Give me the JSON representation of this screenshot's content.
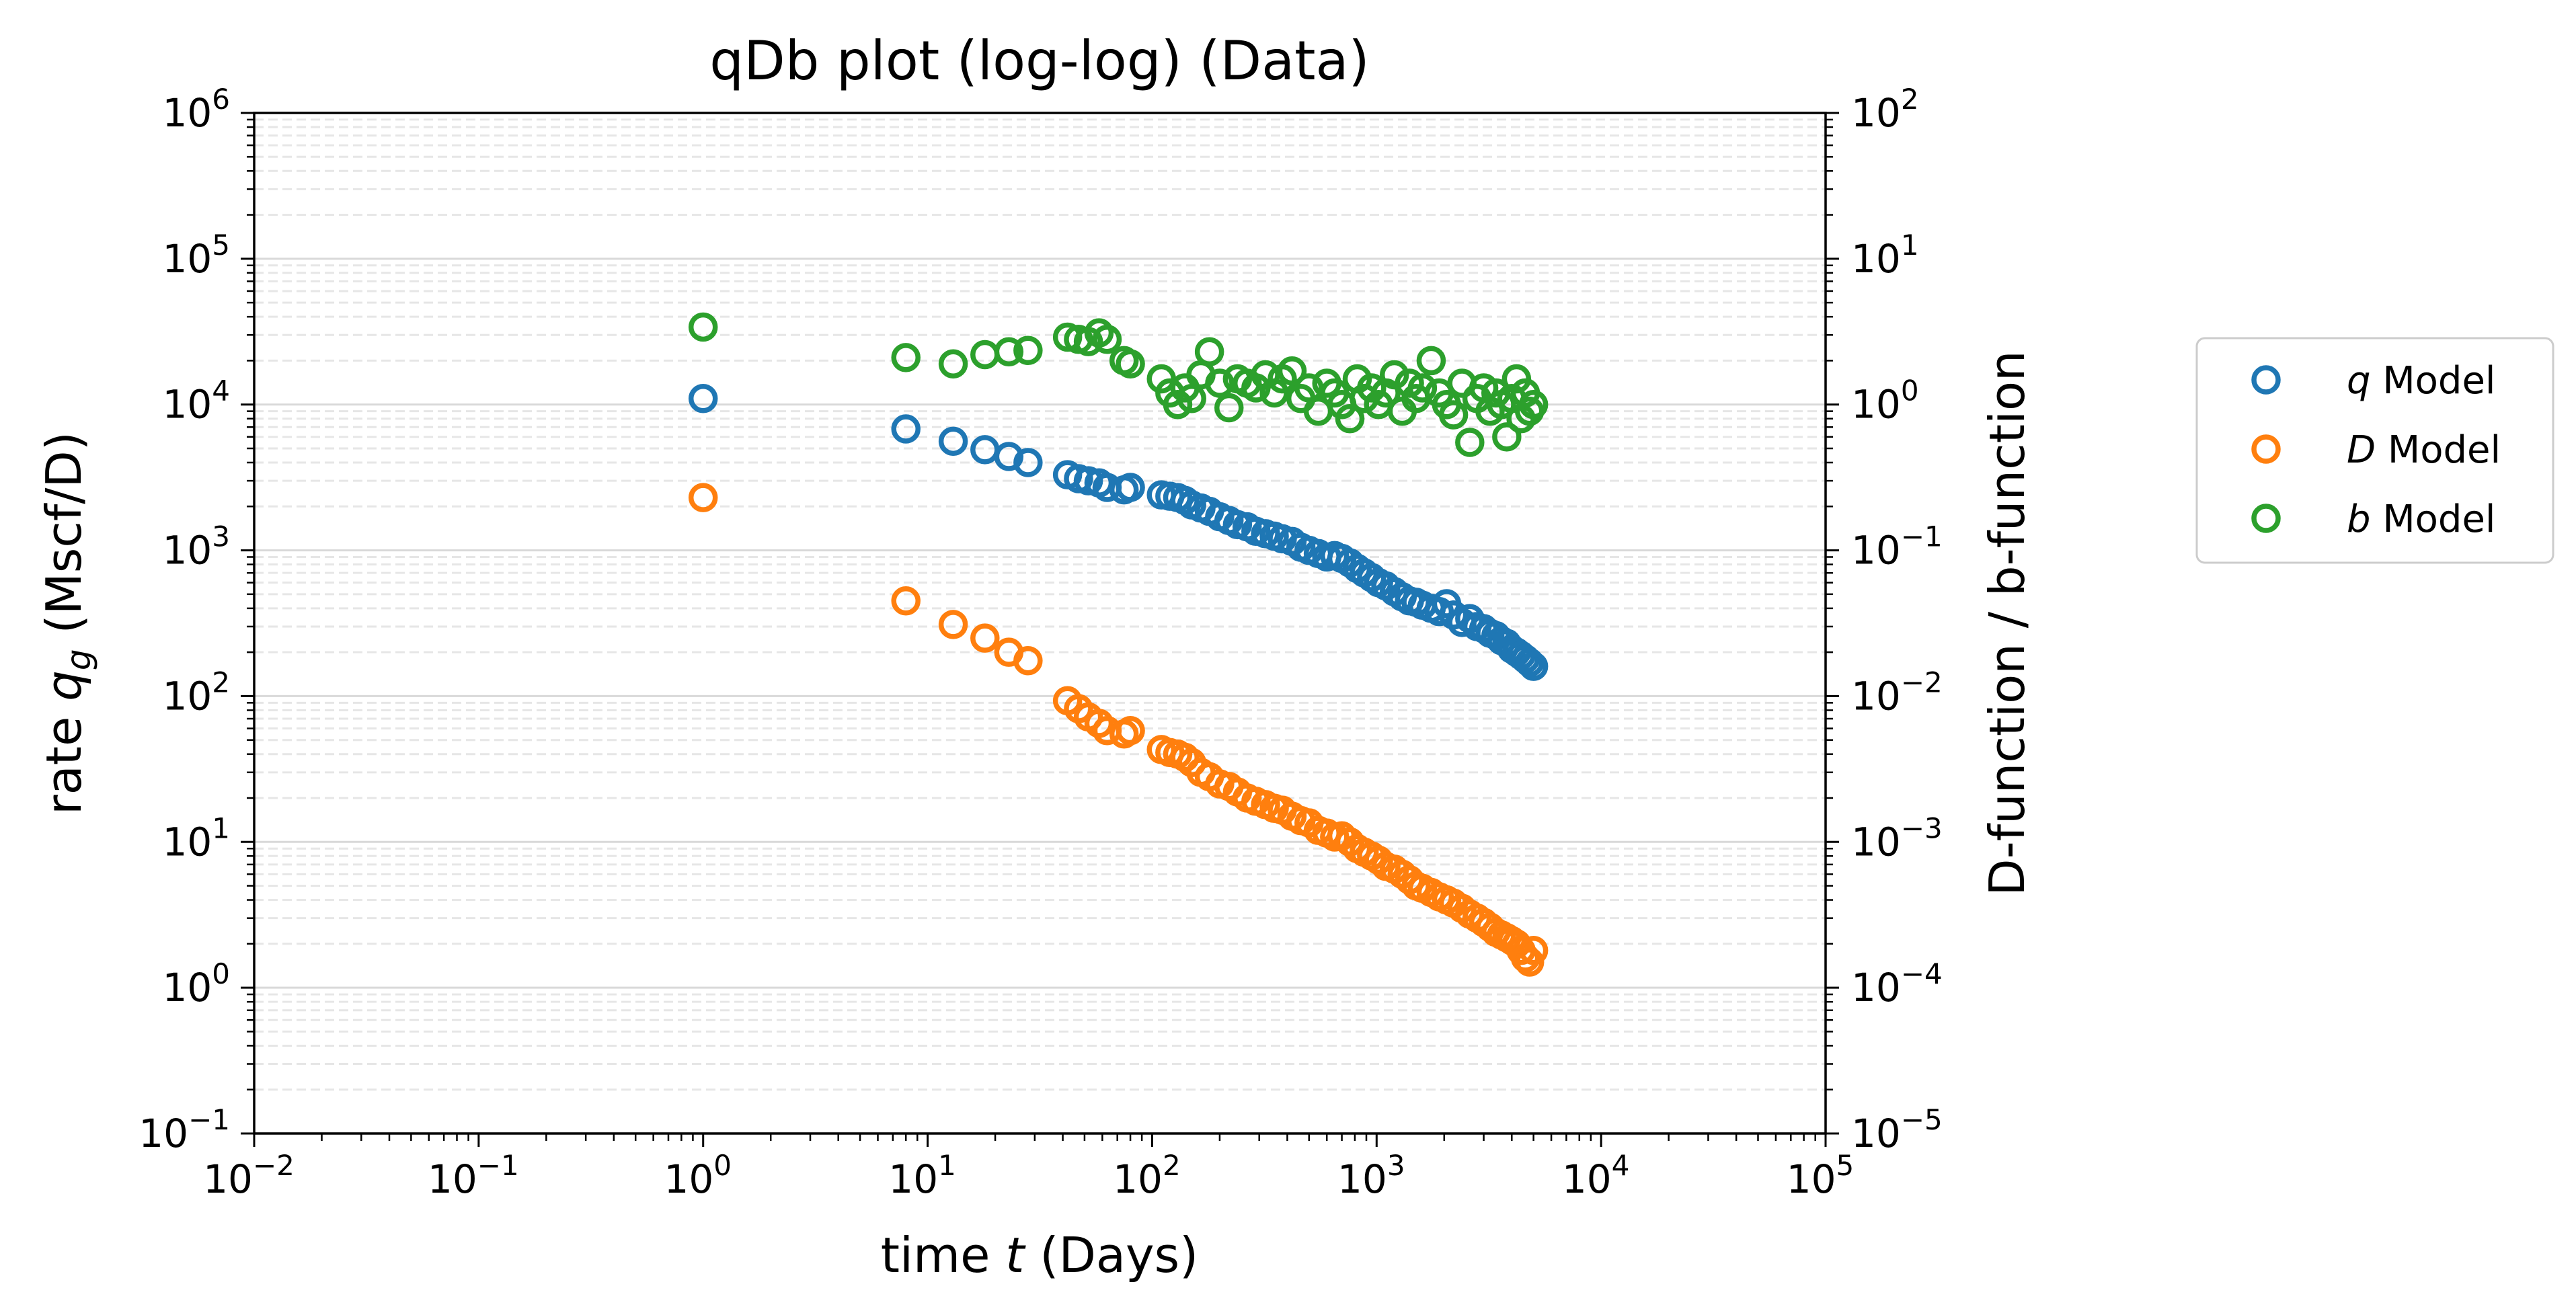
{
  "chart_data": {
    "type": "scatter",
    "title": "qDb plot (log-log) (Data)",
    "xlabel": {
      "pre": "time ",
      "var": "t",
      "post": " (Days)"
    },
    "ylabel": {
      "pre": "rate ",
      "var": "q",
      "sub": "g",
      "post": " (Mscf/D)"
    },
    "y2label": "D-function / b-function",
    "x_scale": "log",
    "y_scale": "log",
    "y2_scale": "log",
    "xlim": [
      0.01,
      100000
    ],
    "ylim": [
      0.1,
      1000000
    ],
    "y2lim": [
      1e-05,
      100
    ],
    "grid": "y-major-solid, y-minor-dashed",
    "legend_position": "outside right",
    "x_ticks": [
      {
        "base": "10",
        "exp": "−2",
        "value": 0.01
      },
      {
        "base": "10",
        "exp": "−1",
        "value": 0.1
      },
      {
        "base": "10",
        "exp": "0",
        "value": 1
      },
      {
        "base": "10",
        "exp": "1",
        "value": 10
      },
      {
        "base": "10",
        "exp": "2",
        "value": 100
      },
      {
        "base": "10",
        "exp": "3",
        "value": 1000
      },
      {
        "base": "10",
        "exp": "4",
        "value": 10000
      },
      {
        "base": "10",
        "exp": "5",
        "value": 100000
      }
    ],
    "y_ticks": [
      {
        "base": "10",
        "exp": "−1",
        "value": 0.1
      },
      {
        "base": "10",
        "exp": "0",
        "value": 1
      },
      {
        "base": "10",
        "exp": "1",
        "value": 10
      },
      {
        "base": "10",
        "exp": "2",
        "value": 100
      },
      {
        "base": "10",
        "exp": "3",
        "value": 1000
      },
      {
        "base": "10",
        "exp": "4",
        "value": 10000
      },
      {
        "base": "10",
        "exp": "5",
        "value": 100000
      },
      {
        "base": "10",
        "exp": "6",
        "value": 1000000
      }
    ],
    "y2_ticks": [
      {
        "base": "10",
        "exp": "−5",
        "value": 1e-05
      },
      {
        "base": "10",
        "exp": "−4",
        "value": 0.0001
      },
      {
        "base": "10",
        "exp": "−3",
        "value": 0.001
      },
      {
        "base": "10",
        "exp": "−2",
        "value": 0.01
      },
      {
        "base": "10",
        "exp": "−1",
        "value": 0.1
      },
      {
        "base": "10",
        "exp": "0",
        "value": 1
      },
      {
        "base": "10",
        "exp": "1",
        "value": 10
      },
      {
        "base": "10",
        "exp": "2",
        "value": 100
      }
    ],
    "series": [
      {
        "name": "q Model",
        "var": "q",
        "suffix": " Model",
        "axis": "left",
        "color": "#1f77b4",
        "x": [
          1,
          8,
          13,
          18,
          23,
          28,
          42,
          47,
          52,
          58,
          63,
          75,
          80,
          110,
          120,
          130,
          140,
          150,
          165,
          180,
          200,
          220,
          240,
          265,
          290,
          320,
          350,
          380,
          420,
          460,
          500,
          550,
          600,
          650,
          700,
          760,
          820,
          880,
          950,
          1020,
          1100,
          1200,
          1300,
          1400,
          1500,
          1600,
          1750,
          1900,
          2050,
          2200,
          2400,
          2600,
          2800,
          3000,
          3200,
          3400,
          3600,
          3800,
          4000,
          4200,
          4400,
          4600,
          4800,
          5000
        ],
        "y": [
          11000,
          6800,
          5600,
          4900,
          4400,
          4000,
          3300,
          3100,
          3000,
          2900,
          2700,
          2600,
          2700,
          2400,
          2350,
          2300,
          2200,
          2050,
          1950,
          1850,
          1700,
          1600,
          1500,
          1450,
          1350,
          1300,
          1250,
          1200,
          1150,
          1050,
          1000,
          950,
          900,
          920,
          880,
          820,
          750,
          700,
          650,
          600,
          570,
          520,
          480,
          450,
          440,
          420,
          400,
          380,
          430,
          360,
          320,
          340,
          300,
          290,
          270,
          260,
          240,
          230,
          210,
          200,
          190,
          180,
          170,
          160
        ]
      },
      {
        "name": "D Model",
        "var": "D",
        "suffix": " Model",
        "axis": "right",
        "color": "#ff7f0e",
        "x": [
          1,
          8,
          13,
          18,
          23,
          28,
          42,
          47,
          52,
          58,
          63,
          75,
          80,
          110,
          120,
          130,
          140,
          150,
          165,
          180,
          200,
          220,
          240,
          265,
          290,
          320,
          350,
          380,
          420,
          460,
          500,
          550,
          600,
          650,
          700,
          760,
          820,
          880,
          950,
          1020,
          1100,
          1200,
          1300,
          1400,
          1500,
          1600,
          1750,
          1900,
          2050,
          2200,
          2400,
          2600,
          2800,
          3000,
          3200,
          3400,
          3600,
          3800,
          4000,
          4200,
          4400,
          4600,
          4800,
          5000
        ],
        "y": [
          0.23,
          0.045,
          0.031,
          0.025,
          0.02,
          0.0175,
          0.0093,
          0.0082,
          0.0072,
          0.0065,
          0.0058,
          0.0055,
          0.0058,
          0.0043,
          0.0041,
          0.004,
          0.0038,
          0.0035,
          0.003,
          0.0028,
          0.0025,
          0.0024,
          0.0022,
          0.002,
          0.0019,
          0.0018,
          0.0017,
          0.00165,
          0.0015,
          0.0014,
          0.00135,
          0.0012,
          0.00115,
          0.00108,
          0.0011,
          0.001,
          0.0009,
          0.00085,
          0.0008,
          0.00075,
          0.00068,
          0.00065,
          0.0006,
          0.00055,
          0.0005,
          0.00048,
          0.00045,
          0.00042,
          0.0004,
          0.00038,
          0.00035,
          0.00032,
          0.0003,
          0.00028,
          0.00026,
          0.00024,
          0.00023,
          0.00022,
          0.00021,
          0.0002,
          0.00018,
          0.00016,
          0.00015,
          0.00018
        ]
      },
      {
        "name": "b Model",
        "var": "b",
        "suffix": " Model",
        "axis": "right",
        "color": "#2ca02c",
        "x": [
          1,
          8,
          13,
          18,
          23,
          28,
          42,
          47,
          52,
          58,
          63,
          75,
          80,
          110,
          120,
          130,
          140,
          150,
          165,
          180,
          200,
          220,
          240,
          265,
          290,
          320,
          350,
          380,
          420,
          460,
          500,
          550,
          600,
          650,
          700,
          760,
          820,
          880,
          950,
          1020,
          1100,
          1200,
          1300,
          1400,
          1500,
          1600,
          1750,
          1900,
          2050,
          2200,
          2400,
          2600,
          2800,
          3000,
          3200,
          3400,
          3600,
          3800,
          4000,
          4200,
          4400,
          4600,
          4800,
          5000
        ],
        "y": [
          3.4,
          2.1,
          1.9,
          2.2,
          2.3,
          2.35,
          2.9,
          2.8,
          2.7,
          3.1,
          2.8,
          2.0,
          1.9,
          1.5,
          1.2,
          1.0,
          1.3,
          1.1,
          1.6,
          2.3,
          1.4,
          0.95,
          1.5,
          1.4,
          1.3,
          1.6,
          1.2,
          1.5,
          1.7,
          1.1,
          1.3,
          0.9,
          1.4,
          1.2,
          1.0,
          0.8,
          1.5,
          1.1,
          1.3,
          1.0,
          1.2,
          1.6,
          0.9,
          1.4,
          1.1,
          1.3,
          2.0,
          1.2,
          1.0,
          0.85,
          1.4,
          0.55,
          1.1,
          1.3,
          0.9,
          1.2,
          1.0,
          0.6,
          1.1,
          1.5,
          0.8,
          1.2,
          0.9,
          1.0
        ]
      }
    ]
  }
}
